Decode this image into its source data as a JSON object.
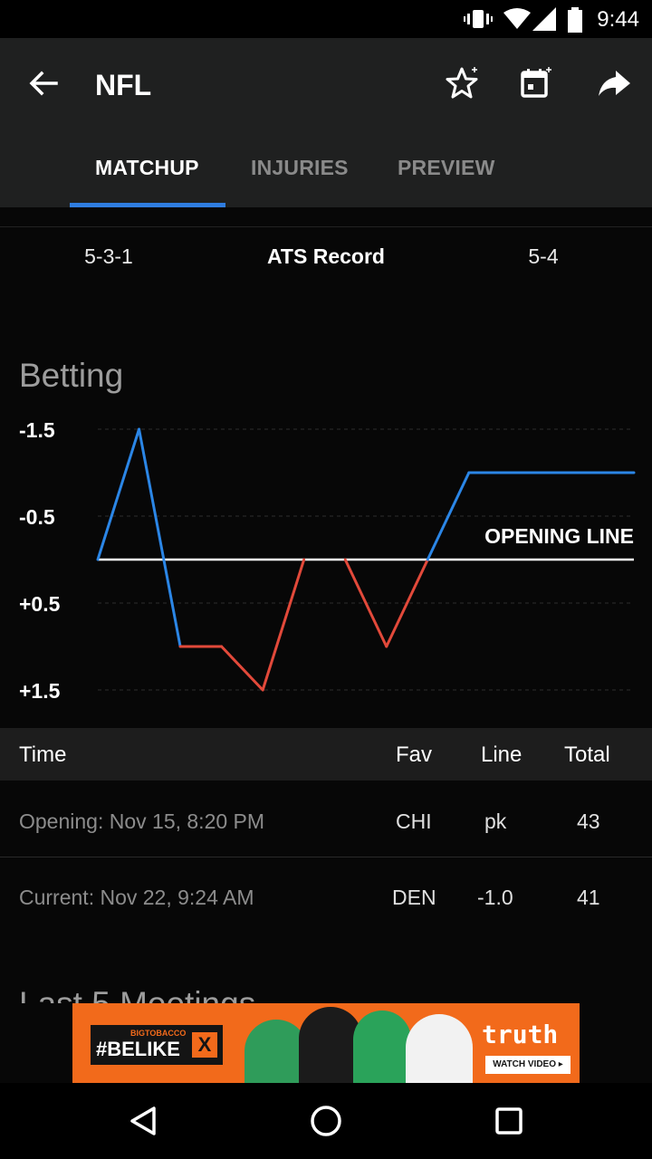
{
  "status_bar": {
    "time": "9:44",
    "icons": [
      "vibrate-icon",
      "wifi-icon",
      "signal-icon",
      "battery-icon"
    ]
  },
  "app_bar": {
    "title": "NFL",
    "actions": [
      "favorite-star-add-icon",
      "calendar-add-icon",
      "share-icon"
    ]
  },
  "tabs": [
    {
      "label": "MATCHUP",
      "active": true
    },
    {
      "label": "INJURIES",
      "active": false
    },
    {
      "label": "PREVIEW",
      "active": false
    }
  ],
  "ats": {
    "left": "5-3-1",
    "label": "ATS Record",
    "right": "5-4"
  },
  "betting": {
    "title": "Betting"
  },
  "chart_data": {
    "type": "line",
    "ytick_labels": [
      "-1.5",
      "-0.5",
      "+0.5",
      "+1.5"
    ],
    "ylim": [
      -1.5,
      1.5
    ],
    "reference_line": {
      "label": "OPENING LINE",
      "value": 0
    },
    "x": [
      0,
      1,
      2,
      3,
      4,
      5,
      6,
      7,
      8,
      9,
      10,
      11,
      12,
      13
    ],
    "values": [
      0,
      -1.5,
      1.0,
      1.0,
      1.5,
      0,
      0,
      1.0,
      0,
      -1.0,
      -1.0,
      -1.0,
      -1.0,
      -1.0
    ],
    "colors": {
      "above_line": "#2b86e6",
      "below_line": "#e2493a",
      "reference": "#ffffff"
    },
    "grid": true
  },
  "lines_table": {
    "headers": {
      "time": "Time",
      "fav": "Fav",
      "line": "Line",
      "total": "Total"
    },
    "rows": [
      {
        "time": "Opening: Nov 15, 8:20 PM",
        "fav": "CHI",
        "line": "pk",
        "total": "43"
      },
      {
        "time": "Current: Nov 22, 9:24 AM",
        "fav": "DEN",
        "line": "-1.0",
        "total": "41"
      }
    ]
  },
  "next_section": {
    "title": "Last 5 Meetings"
  },
  "ad": {
    "tag_small": "BIGTOBACCO",
    "tag_hash": "#BELIKE",
    "tag_x": "X",
    "brand": "truth",
    "cta": "WATCH VIDEO ▸"
  },
  "nav_bar": {
    "buttons": [
      "back-triangle-icon",
      "home-circle-icon",
      "recents-square-icon"
    ]
  }
}
